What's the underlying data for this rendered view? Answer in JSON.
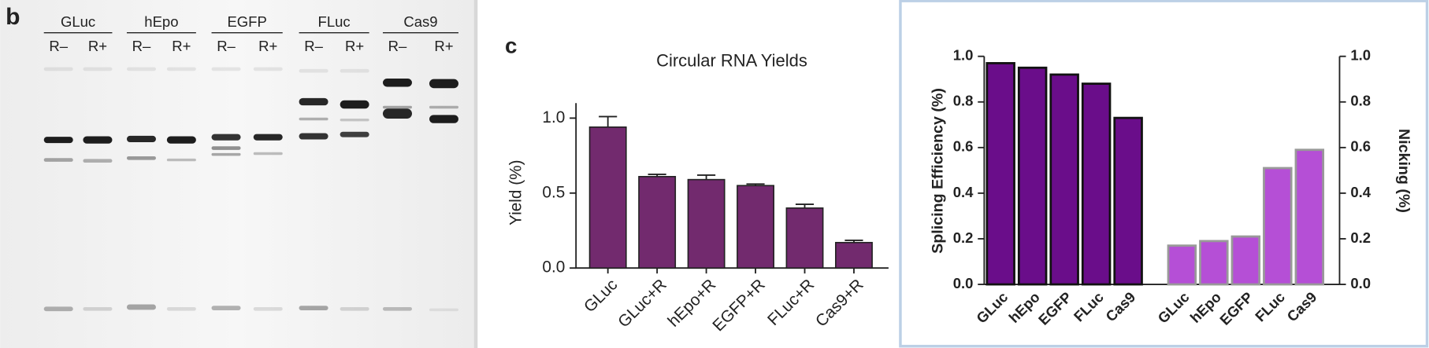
{
  "gel": {
    "label": "b",
    "groups": [
      {
        "name": "GLuc",
        "lanes": [
          "R–",
          "R+"
        ]
      },
      {
        "name": "hEpo",
        "lanes": [
          "R–",
          "R+"
        ]
      },
      {
        "name": "EGFP",
        "lanes": [
          "R–",
          "R+"
        ]
      },
      {
        "name": "FLuc",
        "lanes": [
          "R–",
          "R+"
        ]
      },
      {
        "name": "Cas9",
        "lanes": [
          "R–",
          "R+"
        ]
      }
    ]
  },
  "chart_data": [
    {
      "type": "bar",
      "panel": "c",
      "title": "Circular RNA Yields",
      "ylabel": "Yield (%)",
      "categories": [
        "GLuc",
        "GLuc+R",
        "hEpo+R",
        "EGFP+R",
        "FLuc+R",
        "Cas9+R"
      ],
      "values": [
        0.94,
        0.61,
        0.59,
        0.55,
        0.4,
        0.17
      ],
      "errors": [
        0.07,
        0.015,
        0.03,
        0.01,
        0.025,
        0.015
      ],
      "color": "#722a6e",
      "ylim": [
        0,
        1.1
      ],
      "yticks": [
        {
          "value": 0,
          "label": "0.0"
        },
        0.5,
        {
          "value": 1,
          "label": "1.0"
        }
      ]
    },
    {
      "type": "bar",
      "ylabel": "Splicing Efficiency (%)",
      "y2label": "Nicking (%)",
      "categories": [
        "GLuc",
        "hEpo",
        "EGFP",
        "FLuc",
        "Cas9",
        "GLuc",
        "hEpo",
        "EGFP",
        "FLuc",
        "Cas9"
      ],
      "series": [
        {
          "color": "#6a0d8a",
          "values": [
            0.97,
            0.95,
            0.92,
            0.88,
            0.73,
            null,
            null,
            null,
            null,
            null
          ]
        },
        {
          "color": "#b54fd6",
          "axis": "y2",
          "values": [
            null,
            null,
            null,
            null,
            null,
            0.17,
            0.19,
            0.21,
            0.51,
            0.59
          ]
        }
      ],
      "ylim": [
        0,
        1
      ],
      "yticks": [
        {
          "value": 0,
          "label": "0.0"
        },
        0.2,
        0.4,
        0.6,
        0.8,
        {
          "value": 1,
          "label": "1.0"
        }
      ],
      "y2lim": [
        0,
        1
      ],
      "y2ticks": [
        {
          "value": 0,
          "label": "0.0"
        },
        0.2,
        0.4,
        0.6,
        0.8,
        {
          "value": 1,
          "label": "1.0"
        }
      ]
    }
  ]
}
